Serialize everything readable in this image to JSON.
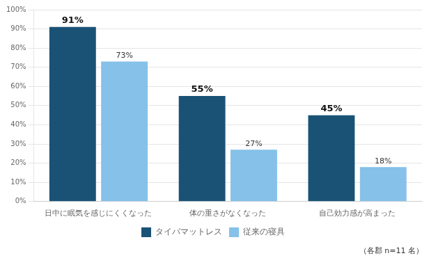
{
  "chart_data": {
    "type": "bar",
    "categories": [
      "日中に眠気を感じにくくなった",
      "体の重さがなくなった",
      "自己効力感が高まった"
    ],
    "series": [
      {
        "name": "タイパマットレス",
        "color": "#1a5276",
        "values": [
          91,
          55,
          45
        ],
        "value_labels": [
          "91%",
          "55%",
          "45%"
        ]
      },
      {
        "name": "従来の寝具",
        "color": "#85c1e9",
        "values": [
          73,
          27,
          18
        ],
        "value_labels": [
          "73%",
          "27%",
          "18%"
        ]
      }
    ],
    "ylim": [
      0,
      100
    ],
    "yticks": [
      {
        "value": 0,
        "label": "0%"
      },
      {
        "value": 10,
        "label": "10%"
      },
      {
        "value": 20,
        "label": "20%"
      },
      {
        "value": 30,
        "label": "30%"
      },
      {
        "value": 40,
        "label": "40%"
      },
      {
        "value": 50,
        "label": "50%"
      },
      {
        "value": 60,
        "label": "60%"
      },
      {
        "value": 70,
        "label": "70%"
      },
      {
        "value": 80,
        "label": "80%"
      },
      {
        "value": 90,
        "label": "90%"
      },
      {
        "value": 100,
        "label": "100%"
      }
    ],
    "grid": true,
    "legend": "bottom",
    "data_labels": true,
    "annotations": [
      "（各郡 n=11 名）"
    ]
  }
}
